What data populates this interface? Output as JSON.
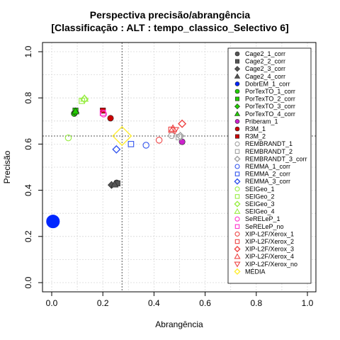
{
  "chart_data": {
    "type": "scatter",
    "title": [
      "Perspectiva precisão/abrangência",
      "[Classificação : ALT : tempo_classico_Selectivo 6]"
    ],
    "xlabel": "Abrangência",
    "ylabel": "Precisão",
    "xlim": [
      0,
      1
    ],
    "ylim": [
      0,
      1
    ],
    "xticks": [
      "0.0",
      "0.2",
      "0.4",
      "0.6",
      "0.8",
      "1.0"
    ],
    "yticks": [
      "0.0",
      "0.2",
      "0.4",
      "0.6",
      "0.8",
      "1.0"
    ],
    "grid": true,
    "legend_position": "right",
    "reference_lines": {
      "x": 0.275,
      "y": 0.635
    },
    "series": [
      {
        "name": "Cage2_1_corr",
        "color": "#555555",
        "shape": "circle",
        "filled": true,
        "size": 1.0,
        "points": [
          [
            0.254,
            0.432
          ]
        ]
      },
      {
        "name": "Cage2_2_corr",
        "color": "#555555",
        "shape": "square",
        "filled": true,
        "size": 1.0,
        "points": [
          [
            0.257,
            0.43
          ]
        ]
      },
      {
        "name": "Cage2_3_corr",
        "color": "#555555",
        "shape": "diamond",
        "filled": true,
        "size": 1.0,
        "points": [
          [
            0.234,
            0.423
          ]
        ]
      },
      {
        "name": "Cage2_4_corr",
        "color": "#555555",
        "shape": "triangle",
        "filled": true,
        "size": 1.0,
        "points": [
          [
            0.246,
            0.425
          ]
        ]
      },
      {
        "name": "DobrEM_1_corr",
        "color": "#0026ff",
        "shape": "circle",
        "filled": true,
        "size": 2.2,
        "points": [
          [
            0.005,
            0.265
          ]
        ]
      },
      {
        "name": "PorTexTO_1_corr",
        "color": "#22cc00",
        "shape": "circle",
        "filled": true,
        "size": 1.0,
        "points": [
          [
            0.088,
            0.732
          ]
        ]
      },
      {
        "name": "PorTexTO_2_corr",
        "color": "#22cc00",
        "shape": "square",
        "filled": true,
        "size": 1.0,
        "points": [
          [
            0.093,
            0.745
          ]
        ]
      },
      {
        "name": "PorTexTO_3_corr",
        "color": "#22cc00",
        "shape": "diamond",
        "filled": true,
        "size": 1.0,
        "points": [
          [
            0.093,
            0.737
          ]
        ]
      },
      {
        "name": "PorTexTO_4_corr",
        "color": "#22cc00",
        "shape": "triangle",
        "filled": true,
        "size": 1.0,
        "points": [
          [
            0.093,
            0.742
          ]
        ]
      },
      {
        "name": "Priberam_1",
        "color": "#cc22cc",
        "shape": "circle",
        "filled": true,
        "size": 1.0,
        "points": [
          [
            0.51,
            0.61
          ]
        ]
      },
      {
        "name": "R3M_1",
        "color": "#cc0000",
        "shape": "circle",
        "filled": true,
        "size": 1.0,
        "points": [
          [
            0.23,
            0.712
          ]
        ]
      },
      {
        "name": "R3M_2",
        "color": "#cc0000",
        "shape": "square",
        "filled": true,
        "size": 1.0,
        "points": [
          [
            0.2,
            0.745
          ]
        ]
      },
      {
        "name": "REMBRANDT_1",
        "color": "#a0a0a0",
        "shape": "circle",
        "filled": false,
        "size": 1.0,
        "points": [
          [
            0.469,
            0.637
          ]
        ]
      },
      {
        "name": "REMBRANDT_2",
        "color": "#a0a0a0",
        "shape": "square",
        "filled": false,
        "size": 1.0,
        "points": [
          [
            0.497,
            0.63
          ]
        ]
      },
      {
        "name": "REMBRANDT_3_corr",
        "color": "#a0a0a0",
        "shape": "diamond",
        "filled": false,
        "size": 1.0,
        "points": [
          [
            0.503,
            0.635
          ]
        ]
      },
      {
        "name": "REMMA_1_corr",
        "color": "#3355ee",
        "shape": "circle",
        "filled": false,
        "size": 1.0,
        "points": [
          [
            0.369,
            0.595
          ]
        ]
      },
      {
        "name": "REMMA_2_corr",
        "color": "#3355ee",
        "shape": "square",
        "filled": false,
        "size": 1.0,
        "points": [
          [
            0.31,
            0.6
          ]
        ]
      },
      {
        "name": "REMMA_3_corr",
        "color": "#3355ee",
        "shape": "diamond",
        "filled": false,
        "size": 1.0,
        "points": [
          [
            0.253,
            0.577
          ]
        ]
      },
      {
        "name": "SEIGeo_1",
        "color": "#99ee44",
        "shape": "circle",
        "filled": false,
        "size": 1.0,
        "points": [
          [
            0.065,
            0.627
          ]
        ]
      },
      {
        "name": "SEIGeo_2",
        "color": "#99ee44",
        "shape": "square",
        "filled": false,
        "size": 1.0,
        "points": [
          [
            0.118,
            0.787
          ]
        ]
      },
      {
        "name": "SEIGeo_3",
        "color": "#99ee44",
        "shape": "diamond",
        "filled": false,
        "size": 1.0,
        "points": [
          [
            0.128,
            0.795
          ]
        ]
      },
      {
        "name": "SEIGeo_4",
        "color": "#99ee44",
        "shape": "triangle",
        "filled": false,
        "size": 1.0,
        "points": [
          [
            0.128,
            0.797
          ]
        ]
      },
      {
        "name": "SeRELeP_1",
        "color": "#ff33cc",
        "shape": "circle",
        "filled": false,
        "size": 1.0,
        "points": [
          [
            0.203,
            0.73
          ]
        ]
      },
      {
        "name": "SeRELeP_no",
        "color": "#ff33cc",
        "shape": "square",
        "filled": false,
        "size": 1.0,
        "points": [
          [
            0.2,
            0.735
          ]
        ]
      },
      {
        "name": "XIP-L2F/Xerox_1",
        "color": "#ee4444",
        "shape": "circle",
        "filled": false,
        "size": 1.0,
        "points": [
          [
            0.42,
            0.617
          ]
        ]
      },
      {
        "name": "XIP-L2F/Xerox_2",
        "color": "#ee4444",
        "shape": "square",
        "filled": false,
        "size": 1.0,
        "points": [
          [
            0.468,
            0.662
          ]
        ]
      },
      {
        "name": "XIP-L2F/Xerox_3",
        "color": "#ee4444",
        "shape": "diamond",
        "filled": false,
        "size": 1.0,
        "points": [
          [
            0.51,
            0.688
          ]
        ]
      },
      {
        "name": "XIP-L2F/Xerox_4",
        "color": "#ee4444",
        "shape": "triangle",
        "filled": false,
        "size": 1.0,
        "points": [
          [
            0.474,
            0.667
          ]
        ]
      },
      {
        "name": "XIP-L2F/Xerox_no",
        "color": "#ee4444",
        "shape": "triangle-down",
        "filled": false,
        "size": 1.0,
        "points": [
          [
            0.482,
            0.66
          ]
        ]
      },
      {
        "name": "MÉDIA",
        "color": "#ffee33",
        "shape": "diamond",
        "filled": false,
        "size": 2.6,
        "points": [
          [
            0.275,
            0.635
          ]
        ]
      }
    ]
  }
}
